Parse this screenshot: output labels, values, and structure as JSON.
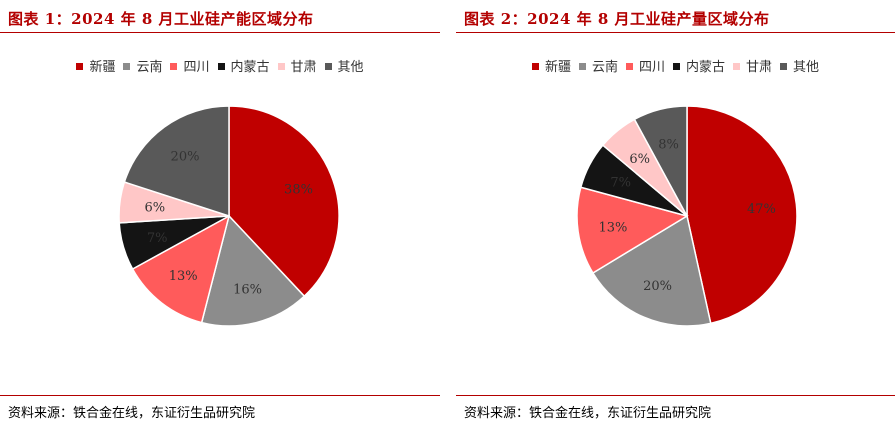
{
  "chart_data": [
    {
      "type": "pie",
      "title": "图表 1：2024 年 8 月工业硅产能区域分布",
      "categories": [
        "新疆",
        "云南",
        "四川",
        "内蒙古",
        "甘肃",
        "其他"
      ],
      "values": [
        38,
        16,
        13,
        7,
        6,
        20
      ],
      "labels": [
        "38%",
        "16%",
        "13%",
        "7%",
        "6%",
        "20%"
      ],
      "colors": [
        "#c00000",
        "#8c8c8c",
        "#ff5b5b",
        "#141414",
        "#ffc7c7",
        "#595959"
      ],
      "legend_position": "top",
      "source": "资料来源：铁合金在线，东证衍生品研究院"
    },
    {
      "type": "pie",
      "title": "图表 2：2024 年 8 月工业硅产量区域分布",
      "categories": [
        "新疆",
        "云南",
        "四川",
        "内蒙古",
        "甘肃",
        "其他"
      ],
      "values": [
        47,
        20,
        13,
        7,
        6,
        8
      ],
      "labels": [
        "47%",
        "20%",
        "13%",
        "7%",
        "6%",
        "8%"
      ],
      "colors": [
        "#c00000",
        "#8c8c8c",
        "#ff5b5b",
        "#141414",
        "#ffc7c7",
        "#595959"
      ],
      "legend_position": "top",
      "source": "资料来源：铁合金在线，东证衍生品研究院"
    }
  ]
}
